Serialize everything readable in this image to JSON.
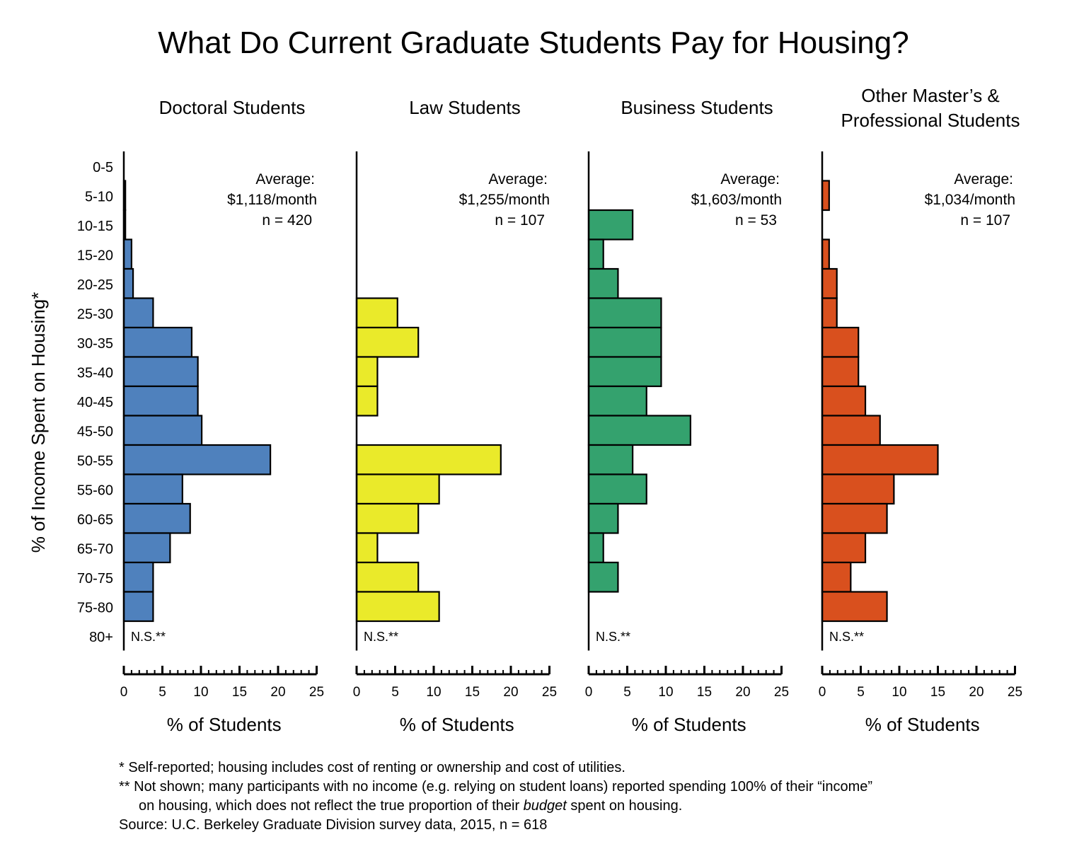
{
  "title": "What Do Current Graduate Students Pay for Housing?",
  "y_axis_label": "% of Income Spent on Housing*",
  "ns_label": "N.S.**",
  "chart_data": [
    {
      "type": "bar",
      "orientation": "horizontal",
      "title_lines": [
        "Doctoral Students"
      ],
      "average_label": "Average:",
      "average_value": "$1,118/month",
      "n_label": "n = 420",
      "color": "#4f81bd",
      "categories": [
        "0-5",
        "5-10",
        "10-15",
        "15-20",
        "20-25",
        "25-30",
        "30-35",
        "35-40",
        "40-45",
        "45-50",
        "50-55",
        "55-60",
        "60-65",
        "65-70",
        "70-75",
        "75-80",
        "80+"
      ],
      "values": [
        0,
        0.2,
        0.2,
        1,
        1.2,
        3.8,
        8.8,
        9.6,
        9.6,
        10.1,
        19,
        7.6,
        8.6,
        6,
        3.8,
        3.8,
        null
      ],
      "xlabel": "% of Students",
      "xlim": [
        0,
        25
      ],
      "xticks": [
        "0",
        "5",
        "10",
        "15",
        "20",
        "25"
      ]
    },
    {
      "type": "bar",
      "orientation": "horizontal",
      "title_lines": [
        "Law Students"
      ],
      "average_label": "Average:",
      "average_value": "$1,255/month",
      "n_label": "n = 107",
      "color": "#eaea2a",
      "categories": [
        "0-5",
        "5-10",
        "10-15",
        "15-20",
        "20-25",
        "25-30",
        "30-35",
        "35-40",
        "40-45",
        "45-50",
        "50-55",
        "55-60",
        "60-65",
        "65-70",
        "70-75",
        "75-80",
        "80+"
      ],
      "values": [
        0,
        0,
        0,
        0,
        0,
        5.3,
        8,
        2.7,
        2.7,
        0,
        18.7,
        10.7,
        8,
        2.7,
        8,
        10.7,
        null
      ],
      "xlabel": "% of Students",
      "xlim": [
        0,
        25
      ],
      "xticks": [
        "0",
        "5",
        "10",
        "15",
        "20",
        "25"
      ]
    },
    {
      "type": "bar",
      "orientation": "horizontal",
      "title_lines": [
        "Business Students"
      ],
      "average_label": "Average:",
      "average_value": "$1,603/month",
      "n_label": "n = 53",
      "color": "#34a26e",
      "categories": [
        "0-5",
        "5-10",
        "10-15",
        "15-20",
        "20-25",
        "25-30",
        "30-35",
        "35-40",
        "40-45",
        "45-50",
        "50-55",
        "55-60",
        "60-65",
        "65-70",
        "70-75",
        "75-80",
        "80+"
      ],
      "values": [
        0,
        0,
        5.7,
        1.9,
        3.8,
        9.4,
        9.4,
        9.4,
        7.5,
        13.2,
        5.7,
        7.5,
        3.8,
        1.9,
        3.8,
        0,
        null
      ],
      "xlabel": "% of Students",
      "xlim": [
        0,
        25
      ],
      "xticks": [
        "0",
        "5",
        "10",
        "15",
        "20",
        "25"
      ]
    },
    {
      "type": "bar",
      "orientation": "horizontal",
      "title_lines": [
        "Other Master’s &",
        "Professional Students"
      ],
      "average_label": "Average:",
      "average_value": "$1,034/month",
      "n_label": "n = 107",
      "color": "#d9501e",
      "categories": [
        "0-5",
        "5-10",
        "10-15",
        "15-20",
        "20-25",
        "25-30",
        "30-35",
        "35-40",
        "40-45",
        "45-50",
        "50-55",
        "55-60",
        "60-65",
        "65-70",
        "70-75",
        "75-80",
        "80+"
      ],
      "values": [
        0,
        0.9,
        0,
        0.9,
        1.9,
        1.9,
        4.7,
        4.7,
        5.6,
        7.5,
        15,
        9.3,
        8.4,
        5.6,
        3.7,
        8.4,
        null
      ],
      "xlabel": "% of Students",
      "xlim": [
        0,
        25
      ],
      "xticks": [
        "0",
        "5",
        "10",
        "15",
        "20",
        "25"
      ]
    }
  ],
  "footnotes": {
    "note1": "*  Self-reported; housing includes cost of renting or ownership and cost of utilities.",
    "note2a": "** Not shown; many participants with no income (e.g. relying on student loans) reported spending 100% of their “income”",
    "note2b_before": "on housing, which does not reflect the true proportion of their ",
    "note2b_italic": "budget",
    "note2b_after": " spent on housing.",
    "source": "Source: U.C. Berkeley Graduate Division survey data, 2015, n = 618"
  }
}
